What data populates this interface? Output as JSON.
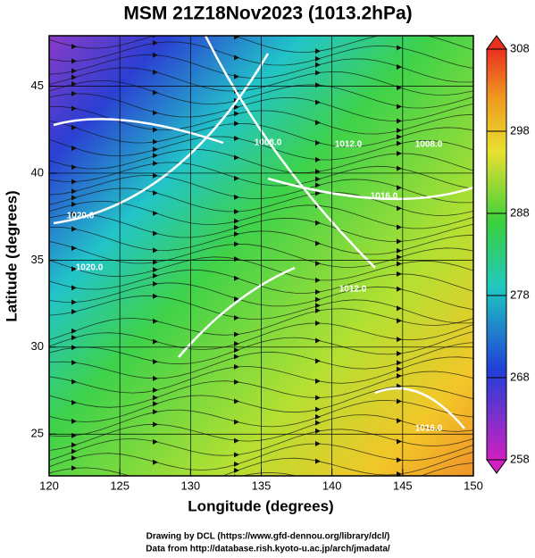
{
  "chart_data": {
    "type": "map",
    "title": "MSM 21Z18Nov2023 (1013.2hPa)",
    "xlabel": "Longitude (degrees)",
    "ylabel": "Latitude  (degrees)",
    "xlim": [
      120,
      150
    ],
    "ylim": [
      22.6,
      47.9
    ],
    "xticks": [
      120,
      125,
      130,
      135,
      140,
      145,
      150
    ],
    "yticks": [
      25,
      30,
      35,
      40,
      45
    ],
    "grid": true,
    "colorbar": {
      "lim": [
        258,
        308
      ],
      "ticks": [
        258,
        268,
        278,
        288,
        298,
        308
      ]
    },
    "annotations": [
      "1020.0",
      "1020.0",
      "1008.0",
      "1012.0",
      "1008.0",
      "1012.0",
      "1016.0",
      "1016.0"
    ],
    "footer": [
      "Drawing by DCL (https://www.gfd-dennou.org/library/dcl/)",
      "Data from http://database.rish.kyoto-u.ac.jp/arch/jmadata/"
    ]
  }
}
